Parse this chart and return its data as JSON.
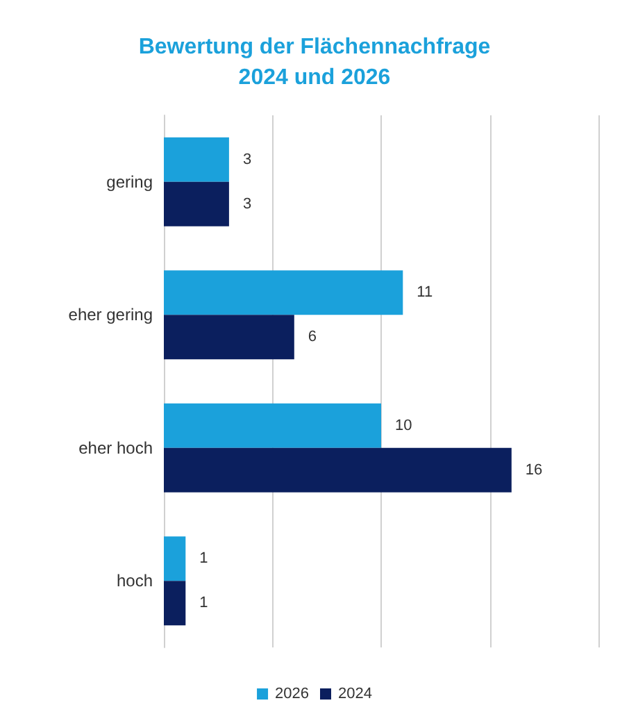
{
  "chart_data": {
    "type": "bar",
    "orientation": "horizontal",
    "title": "Bewertung der Flächennachfrage\n2024 und 2026",
    "categories": [
      "gering",
      "eher gering",
      "eher hoch",
      "hoch"
    ],
    "series": [
      {
        "name": "2026",
        "color": "#1ba1db",
        "values": [
          3,
          11,
          10,
          1
        ]
      },
      {
        "name": "2024",
        "color": "#0b1f5e",
        "values": [
          3,
          6,
          16,
          1
        ]
      }
    ],
    "xlim": [
      0,
      20
    ],
    "xticks": [
      0,
      5,
      10,
      15,
      20
    ],
    "tick_labels": "y",
    "grid": "x",
    "legend": "bottom",
    "data_labels": true
  }
}
